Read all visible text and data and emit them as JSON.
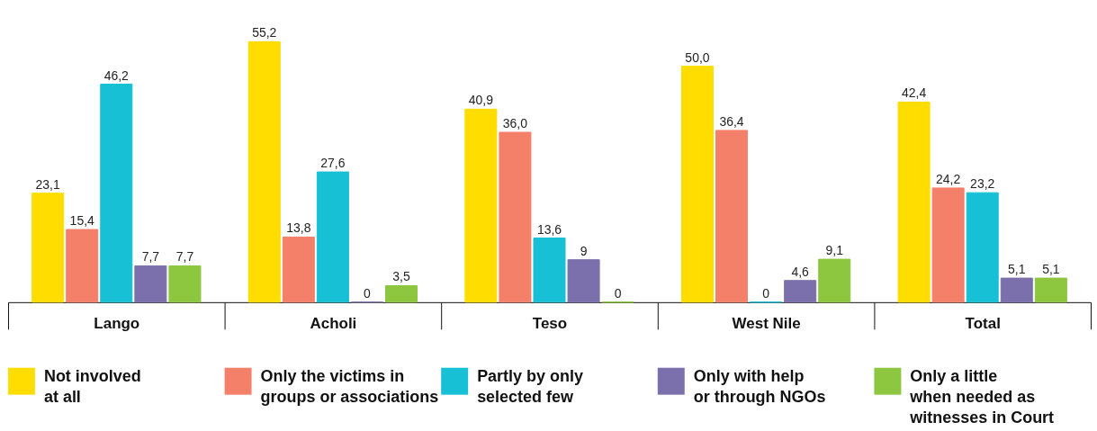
{
  "chart_data": {
    "type": "bar",
    "categories": [
      "Lango",
      "Acholi",
      "Teso",
      "West Nile",
      "Total"
    ],
    "series": [
      {
        "name": "Not involved\nat all",
        "color": "#ffdd00",
        "values": [
          23.1,
          55.2,
          40.9,
          50.0,
          42.4
        ],
        "value_labels": [
          "23,1",
          "55,2",
          "40,9",
          "50,0",
          "42,4"
        ]
      },
      {
        "name": "Only the victims in\ngroups or associations",
        "color": "#f4806a",
        "values": [
          15.4,
          13.8,
          36.0,
          36.4,
          24.2
        ],
        "value_labels": [
          "15,4",
          "13,8",
          "36,0",
          "36,4",
          "24,2"
        ]
      },
      {
        "name": "Partly by only\nselected few",
        "color": "#17c0d4",
        "values": [
          46.2,
          27.6,
          13.6,
          0,
          23.2
        ],
        "value_labels": [
          "46,2",
          "27,6",
          "13,6",
          "0",
          "23,2"
        ]
      },
      {
        "name": "Only with help\nor through NGOs",
        "color": "#7b70ab",
        "values": [
          7.7,
          0,
          9,
          4.6,
          5.1
        ],
        "value_labels": [
          "7,7",
          "0",
          "9",
          "4,6",
          "5,1"
        ]
      },
      {
        "name": "Only a little\nwhen needed as\nwitnesses in Court",
        "color": "#8dc63f",
        "values": [
          7.7,
          3.5,
          0,
          9.1,
          5.1
        ],
        "value_labels": [
          "7,7",
          "3,5",
          "0",
          "9,1",
          "5,1"
        ]
      }
    ],
    "legend": "bottom"
  }
}
